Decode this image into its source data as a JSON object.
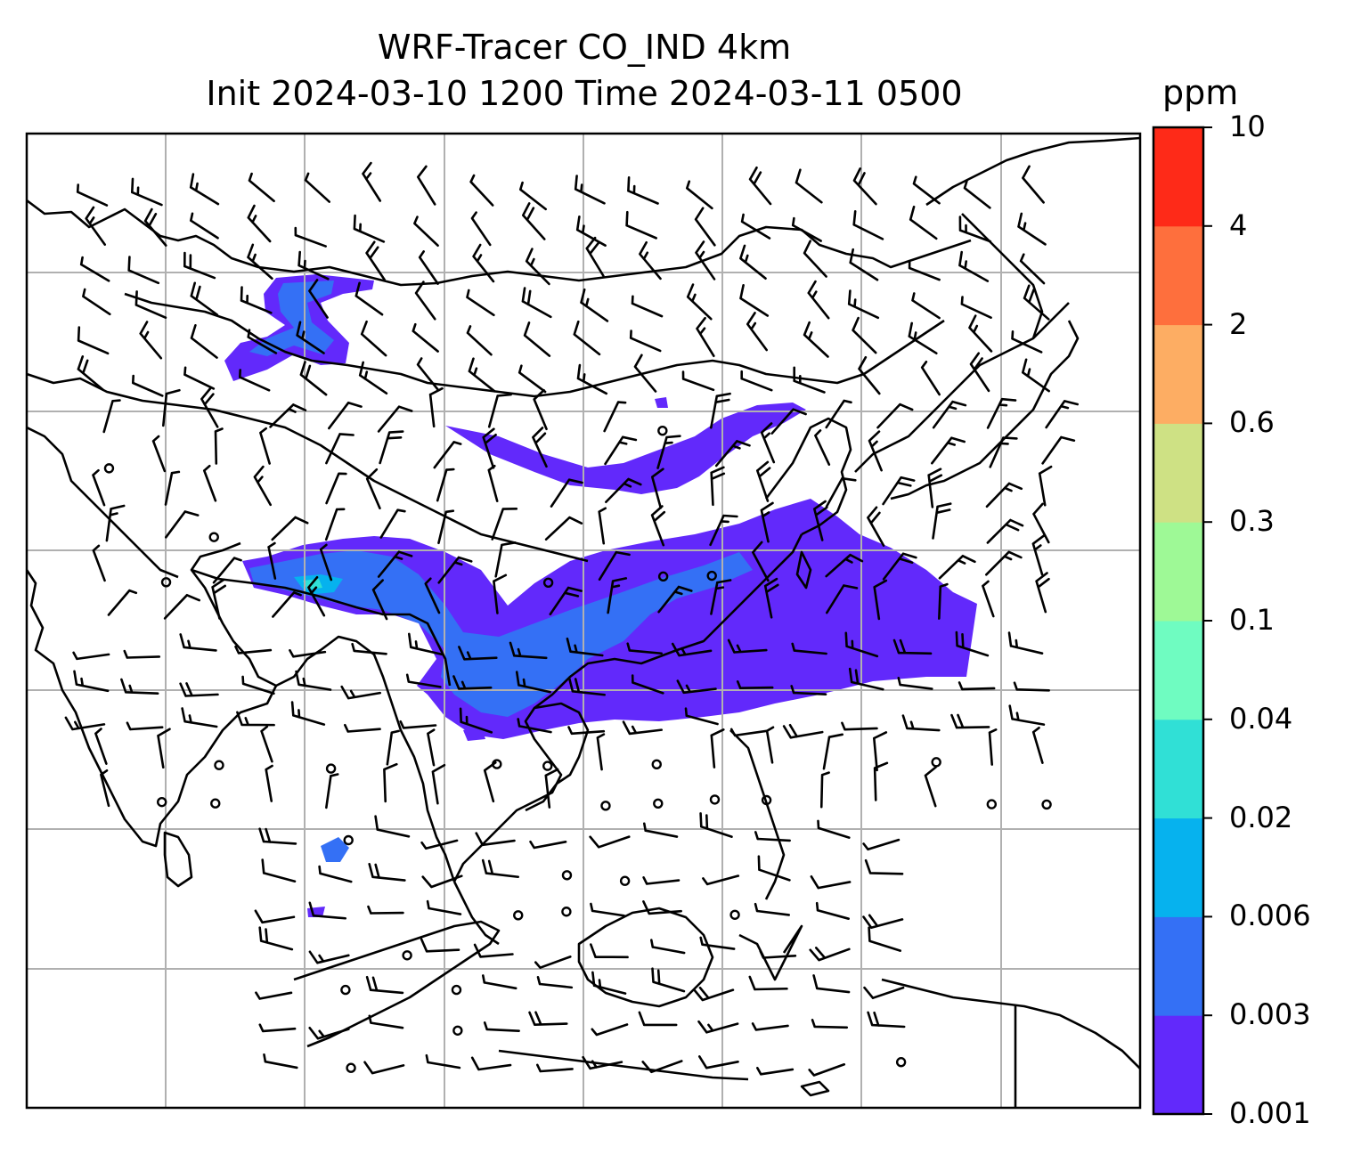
{
  "title": {
    "line1": "WRF-Tracer CO_IND 4km",
    "line2": "Init 2024-03-10 1200 Time 2024-03-11 0500"
  },
  "colorbar": {
    "unit": "ppm",
    "levels": [
      "0.001",
      "0.003",
      "0.006",
      "0.02",
      "0.04",
      "0.1",
      "0.3",
      "0.6",
      "2",
      "4",
      "10"
    ],
    "colors": [
      "#6229fb",
      "#3470f5",
      "#06b2ee",
      "#30e0d6",
      "#6ffcc1",
      "#9ef996",
      "#cee184",
      "#fdad63",
      "#fe6f3d",
      "#fe2a18"
    ]
  },
  "map": {
    "gridlines": true,
    "coastline_color": "#000000",
    "grid_color": "#b0b0b0",
    "wind_barb_color": "#000000"
  }
}
